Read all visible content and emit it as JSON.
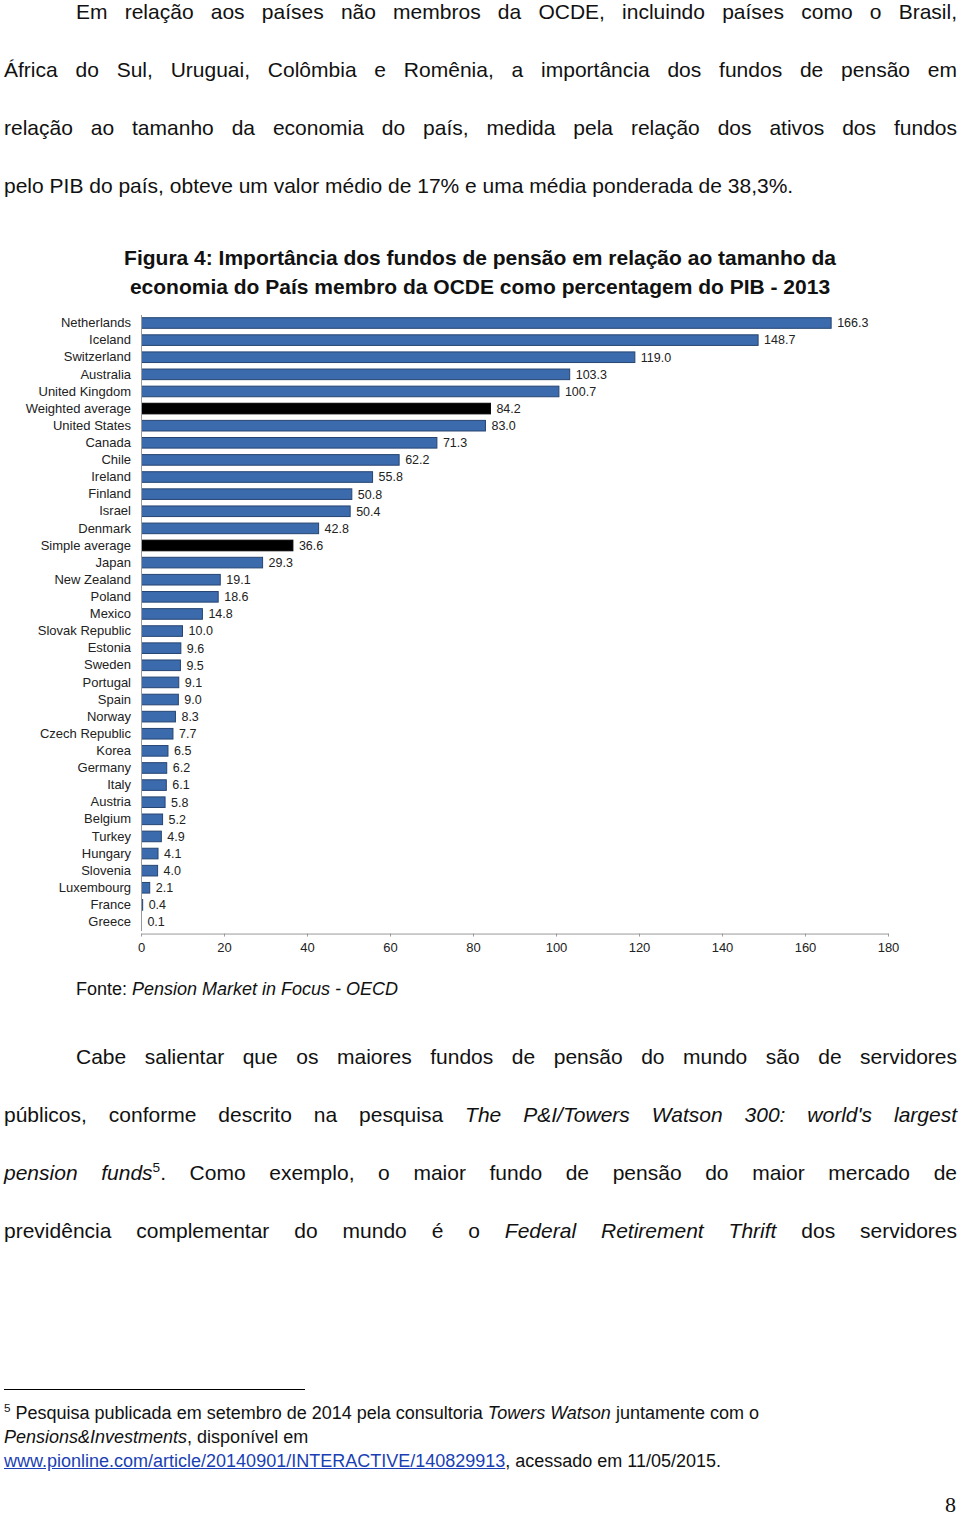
{
  "intro": {
    "lines": [
      [
        {
          "text": "Em relação aos países não membros da OCDE, incluindo países como o Brasil,"
        }
      ],
      [
        {
          "text": "África do Sul, Uruguai, Colômbia e Romênia, a importância dos fundos de pensão em"
        }
      ],
      [
        {
          "text": "relação ao tamanho da economia do país, medida pela relação dos ativos dos fundos"
        }
      ],
      [
        {
          "text": "pelo PIB do país, obteve um valor médio de 17% e uma média ponderada de 38,3%."
        }
      ]
    ]
  },
  "chart_data": {
    "type": "bar",
    "orientation": "horizontal",
    "title": [
      "Figura 4: Importância dos fundos de pensão em relação ao tamanho da",
      "economia do País membro da OCDE como percentagem do PIB - 2013"
    ],
    "categories": [
      "Netherlands",
      "Iceland",
      "Switzerland",
      "Australia",
      "United Kingdom",
      "Weighted average",
      "United States",
      "Canada",
      "Chile",
      "Ireland",
      "Finland",
      "Israel",
      "Denmark",
      "Simple average",
      "Japan",
      "New Zealand",
      "Poland",
      "Mexico",
      "Slovak Republic",
      "Estonia",
      "Sweden",
      "Portugal",
      "Spain",
      "Norway",
      "Czech Republic",
      "Korea",
      "Germany",
      "Italy",
      "Austria",
      "Belgium",
      "Turkey",
      "Hungary",
      "Slovenia",
      "Luxembourg",
      "France",
      "Greece"
    ],
    "values": [
      166.3,
      148.7,
      119.0,
      103.3,
      100.7,
      84.2,
      83.0,
      71.3,
      62.2,
      55.8,
      50.8,
      50.4,
      42.8,
      36.6,
      29.3,
      19.1,
      18.6,
      14.8,
      10.0,
      9.6,
      9.5,
      9.1,
      9.0,
      8.3,
      7.7,
      6.5,
      6.2,
      6.1,
      5.8,
      5.2,
      4.9,
      4.1,
      4.0,
      2.1,
      0.4,
      0.1
    ],
    "value_labels": [
      "166.3",
      "148.7",
      "119.0",
      "103.3",
      "100.7",
      "84.2",
      "83.0",
      "71.3",
      "62.2",
      "55.8",
      "50.8",
      "50.4",
      "42.8",
      "36.6",
      "29.3",
      "19.1",
      "18.6",
      "14.8",
      "10.0",
      "9.6",
      "9.5",
      "9.1",
      "9.0",
      "8.3",
      "7.7",
      "6.5",
      "6.2",
      "6.1",
      "5.8",
      "5.2",
      "4.9",
      "4.1",
      "4.0",
      "2.1",
      "0.4",
      "0.1"
    ],
    "colors": [
      "#3b6aad",
      "#3b6aad",
      "#3b6aad",
      "#3b6aad",
      "#3b6aad",
      "#000000",
      "#3b6aad",
      "#3b6aad",
      "#3b6aad",
      "#3b6aad",
      "#3b6aad",
      "#3b6aad",
      "#3b6aad",
      "#000000",
      "#3b6aad",
      "#3b6aad",
      "#3b6aad",
      "#3b6aad",
      "#3b6aad",
      "#3b6aad",
      "#3b6aad",
      "#3b6aad",
      "#3b6aad",
      "#3b6aad",
      "#3b6aad",
      "#3b6aad",
      "#3b6aad",
      "#3b6aad",
      "#3b6aad",
      "#3b6aad",
      "#3b6aad",
      "#3b6aad",
      "#3b6aad",
      "#3b6aad",
      "#3b6aad",
      "#3b6aad"
    ],
    "xlim": [
      0,
      180
    ],
    "xticks": [
      0,
      20,
      40,
      60,
      80,
      100,
      120,
      140,
      160,
      180
    ],
    "data_labels": true,
    "grid": false
  },
  "source": {
    "lines": [
      [
        {
          "text": "Fonte: "
        },
        {
          "text": "Pension Market in Focus - OECD",
          "italic": true
        }
      ]
    ]
  },
  "body": {
    "lines": [
      [
        {
          "text": "Cabe salientar que os maiores fundos de pensão do mundo são de servidores"
        }
      ],
      [
        {
          "text": "públicos, conforme descrito na pesquisa "
        },
        {
          "text": "The P&I/Towers Watson 300: world's largest",
          "italic": true
        }
      ],
      [
        {
          "text": "pension funds",
          "italic": true
        },
        {
          "text": "5",
          "sup": true
        },
        {
          "text": ". Como exemplo, o maior fundo de pensão do maior mercado de"
        }
      ],
      [
        {
          "text": "previdência complementar do mundo é o "
        },
        {
          "text": "Federal Retirement Thrift",
          "italic": true
        },
        {
          "text": " dos servidores"
        }
      ]
    ]
  },
  "footnote": {
    "lines": [
      [
        {
          "text": "5",
          "sup": true
        },
        {
          "text": " Pesquisa publicada em setembro de 2014 pela consultoria "
        },
        {
          "text": "Towers Watson",
          "italic": true
        },
        {
          "text": " juntamente com o"
        }
      ],
      [
        {
          "text": "Pensions&Investments",
          "italic": true
        },
        {
          "text": ", disponível em"
        }
      ],
      [
        {
          "text": "www.pionline.com/article/20140901/INTERACTIVE/140829913",
          "link": true
        },
        {
          "text": ", acessado em 11/05/2015."
        }
      ]
    ]
  },
  "page_number": "8"
}
